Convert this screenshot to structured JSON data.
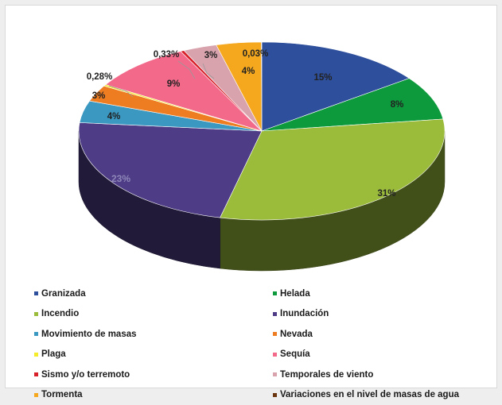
{
  "chart_data": {
    "type": "pie",
    "title": "",
    "slices": [
      {
        "name": "Granizada",
        "value": 15,
        "label": "15%",
        "color": "#2e4f9c"
      },
      {
        "name": "Helada",
        "value": 8,
        "label": "8%",
        "color": "#0c9a3c"
      },
      {
        "name": "Incendio",
        "value": 31,
        "label": "31%",
        "color": "#9bbb3b"
      },
      {
        "name": "Inundación",
        "value": 23,
        "label": "23%",
        "color": "#4e3d86"
      },
      {
        "name": "Movimiento de masas",
        "value": 4,
        "label": "4%",
        "color": "#3a98c1"
      },
      {
        "name": "Nevada",
        "value": 3,
        "label": "3%",
        "color": "#ee7d22"
      },
      {
        "name": "Plaga",
        "value": 0.28,
        "label": "0,28%",
        "color": "#f4ec2a"
      },
      {
        "name": "Sequía",
        "value": 9,
        "label": "9%",
        "color": "#f2698a"
      },
      {
        "name": "Sismo y/o terremoto",
        "value": 0.33,
        "label": "0,33%",
        "color": "#d8202a"
      },
      {
        "name": "Temporales de viento",
        "value": 3,
        "label": "3%",
        "color": "#d9a3ad"
      },
      {
        "name": "Tormenta",
        "value": 4,
        "label": "4%",
        "color": "#f5a81d"
      },
      {
        "name": "Variaciones en el nivel de masas de agua",
        "value": 0.03,
        "label": "0,03%",
        "color": "#6b3510"
      }
    ],
    "legend_position": "bottom",
    "style": "3d-pie"
  }
}
